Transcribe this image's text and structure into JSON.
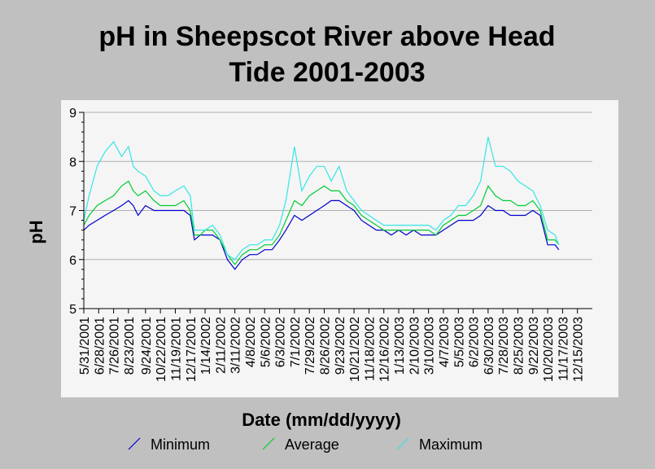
{
  "chart_data": {
    "type": "line",
    "title_lines": [
      "pH in Sheepscot River above Head",
      "Tide 2001-2003"
    ],
    "xlabel": "Date (mm/dd/yyyy)",
    "ylabel": "pH",
    "ylim": [
      5,
      9
    ],
    "yticks": [
      "5",
      "6",
      "7",
      "8",
      "9"
    ],
    "xlim": [
      "2001-05-31",
      "2004-01-12"
    ],
    "xtick_labels": [
      "5/31/2001",
      "6/28/2001",
      "7/26/2001",
      "8/23/2001",
      "9/24/2001",
      "10/22/2001",
      "11/19/2001",
      "12/17/2001",
      "1/14/2002",
      "2/11/2002",
      "3/11/2002",
      "4/8/2002",
      "5/6/2002",
      "6/3/2002",
      "7/1/2002",
      "7/29/2002",
      "8/26/2002",
      "9/23/2002",
      "10/21/2002",
      "11/18/2002",
      "12/16/2002",
      "1/13/2003",
      "2/10/2003",
      "3/10/2003",
      "4/7/2003",
      "5/5/2003",
      "6/2/2003",
      "6/30/2003",
      "7/28/2003",
      "8/25/2003",
      "9/22/2003",
      "10/20/2003",
      "11/17/2003",
      "12/15/2003"
    ],
    "grid": true,
    "legend_position": "bottom",
    "series": [
      {
        "name": "Minimum",
        "color": "#0000cc",
        "x": [
          "2001-05-31",
          "2001-06-10",
          "2001-06-25",
          "2001-07-10",
          "2001-07-26",
          "2001-08-10",
          "2001-08-23",
          "2001-09-01",
          "2001-09-10",
          "2001-09-24",
          "2001-10-10",
          "2001-10-22",
          "2001-11-05",
          "2001-11-19",
          "2001-12-05",
          "2001-12-17",
          "2001-12-25",
          "2002-01-05",
          "2002-01-14",
          "2002-01-28",
          "2002-02-11",
          "2002-02-25",
          "2002-03-11",
          "2002-03-25",
          "2002-04-08",
          "2002-04-22",
          "2002-05-06",
          "2002-05-20",
          "2002-06-03",
          "2002-06-15",
          "2002-07-01",
          "2002-07-15",
          "2002-07-29",
          "2002-08-12",
          "2002-08-26",
          "2002-09-08",
          "2002-09-23",
          "2002-10-07",
          "2002-10-21",
          "2002-11-04",
          "2002-11-18",
          "2002-12-02",
          "2002-12-16",
          "2002-12-30",
          "2003-01-13",
          "2003-01-27",
          "2003-02-10",
          "2003-02-24",
          "2003-03-10",
          "2003-03-24",
          "2003-04-07",
          "2003-04-21",
          "2003-05-05",
          "2003-05-19",
          "2003-06-02",
          "2003-06-16",
          "2003-06-30",
          "2003-07-14",
          "2003-07-28",
          "2003-08-11",
          "2003-08-25",
          "2003-09-08",
          "2003-09-22",
          "2003-10-06",
          "2003-10-20",
          "2003-11-03",
          "2003-11-10"
        ],
        "values": [
          6.6,
          6.7,
          6.8,
          6.9,
          7.0,
          7.1,
          7.2,
          7.1,
          6.9,
          7.1,
          7.0,
          7.0,
          7.0,
          7.0,
          7.0,
          6.9,
          6.4,
          6.5,
          6.5,
          6.5,
          6.4,
          6.0,
          5.8,
          6.0,
          6.1,
          6.1,
          6.2,
          6.2,
          6.4,
          6.6,
          6.9,
          6.8,
          6.9,
          7.0,
          7.1,
          7.2,
          7.2,
          7.1,
          7.0,
          6.8,
          6.7,
          6.6,
          6.6,
          6.5,
          6.6,
          6.5,
          6.6,
          6.5,
          6.5,
          6.5,
          6.6,
          6.7,
          6.8,
          6.8,
          6.8,
          6.9,
          7.1,
          7.0,
          7.0,
          6.9,
          6.9,
          6.9,
          7.0,
          6.9,
          6.3,
          6.3,
          6.2
        ]
      },
      {
        "name": "Average",
        "color": "#00cc33",
        "x": [
          "2001-05-31",
          "2001-06-10",
          "2001-06-25",
          "2001-07-10",
          "2001-07-26",
          "2001-08-10",
          "2001-08-23",
          "2001-09-01",
          "2001-09-10",
          "2001-09-24",
          "2001-10-10",
          "2001-10-22",
          "2001-11-05",
          "2001-11-19",
          "2001-12-05",
          "2001-12-17",
          "2001-12-25",
          "2002-01-05",
          "2002-01-14",
          "2002-01-28",
          "2002-02-11",
          "2002-02-25",
          "2002-03-11",
          "2002-03-25",
          "2002-04-08",
          "2002-04-22",
          "2002-05-06",
          "2002-05-20",
          "2002-06-03",
          "2002-06-15",
          "2002-07-01",
          "2002-07-15",
          "2002-07-29",
          "2002-08-12",
          "2002-08-26",
          "2002-09-08",
          "2002-09-23",
          "2002-10-07",
          "2002-10-21",
          "2002-11-04",
          "2002-11-18",
          "2002-12-02",
          "2002-12-16",
          "2002-12-30",
          "2003-01-13",
          "2003-01-27",
          "2003-02-10",
          "2003-02-24",
          "2003-03-10",
          "2003-03-24",
          "2003-04-07",
          "2003-04-21",
          "2003-05-05",
          "2003-05-19",
          "2003-06-02",
          "2003-06-16",
          "2003-06-30",
          "2003-07-14",
          "2003-07-28",
          "2003-08-11",
          "2003-08-25",
          "2003-09-08",
          "2003-09-22",
          "2003-10-06",
          "2003-10-20",
          "2003-11-03",
          "2003-11-10"
        ],
        "values": [
          6.7,
          6.9,
          7.1,
          7.2,
          7.3,
          7.5,
          7.6,
          7.4,
          7.3,
          7.4,
          7.2,
          7.1,
          7.1,
          7.1,
          7.2,
          7.0,
          6.5,
          6.5,
          6.6,
          6.6,
          6.4,
          6.1,
          5.9,
          6.1,
          6.2,
          6.2,
          6.3,
          6.3,
          6.5,
          6.8,
          7.2,
          7.1,
          7.3,
          7.4,
          7.5,
          7.4,
          7.4,
          7.2,
          7.1,
          6.9,
          6.8,
          6.7,
          6.6,
          6.6,
          6.6,
          6.6,
          6.6,
          6.6,
          6.6,
          6.5,
          6.7,
          6.8,
          6.9,
          6.9,
          7.0,
          7.1,
          7.5,
          7.3,
          7.2,
          7.2,
          7.1,
          7.1,
          7.2,
          7.0,
          6.4,
          6.4,
          6.3
        ]
      },
      {
        "name": "Maximum",
        "color": "#33e6e6",
        "x": [
          "2001-05-31",
          "2001-06-10",
          "2001-06-25",
          "2001-07-10",
          "2001-07-26",
          "2001-08-10",
          "2001-08-23",
          "2001-09-01",
          "2001-09-10",
          "2001-09-24",
          "2001-10-10",
          "2001-10-22",
          "2001-11-05",
          "2001-11-19",
          "2001-12-05",
          "2001-12-17",
          "2001-12-25",
          "2002-01-05",
          "2002-01-14",
          "2002-01-28",
          "2002-02-11",
          "2002-02-25",
          "2002-03-11",
          "2002-03-25",
          "2002-04-08",
          "2002-04-22",
          "2002-05-06",
          "2002-05-20",
          "2002-06-03",
          "2002-06-15",
          "2002-07-01",
          "2002-07-15",
          "2002-07-29",
          "2002-08-12",
          "2002-08-26",
          "2002-09-08",
          "2002-09-23",
          "2002-10-07",
          "2002-10-21",
          "2002-11-04",
          "2002-11-18",
          "2002-12-02",
          "2002-12-16",
          "2002-12-30",
          "2003-01-13",
          "2003-01-27",
          "2003-02-10",
          "2003-02-24",
          "2003-03-10",
          "2003-03-24",
          "2003-04-07",
          "2003-04-21",
          "2003-05-05",
          "2003-05-19",
          "2003-06-02",
          "2003-06-16",
          "2003-06-30",
          "2003-07-14",
          "2003-07-28",
          "2003-08-11",
          "2003-08-25",
          "2003-09-08",
          "2003-09-22",
          "2003-10-06",
          "2003-10-20",
          "2003-11-03",
          "2003-11-10"
        ],
        "values": [
          6.8,
          7.3,
          7.9,
          8.2,
          8.4,
          8.1,
          8.3,
          7.9,
          7.8,
          7.7,
          7.4,
          7.3,
          7.3,
          7.4,
          7.5,
          7.3,
          6.6,
          6.6,
          6.6,
          6.7,
          6.5,
          6.1,
          6.0,
          6.2,
          6.3,
          6.3,
          6.4,
          6.4,
          6.7,
          7.2,
          8.3,
          7.4,
          7.7,
          7.9,
          7.9,
          7.6,
          7.9,
          7.4,
          7.2,
          7.0,
          6.9,
          6.8,
          6.7,
          6.7,
          6.7,
          6.7,
          6.7,
          6.7,
          6.7,
          6.6,
          6.8,
          6.9,
          7.1,
          7.1,
          7.3,
          7.6,
          8.5,
          7.9,
          7.9,
          7.8,
          7.6,
          7.5,
          7.4,
          7.1,
          6.6,
          6.5,
          6.3
        ]
      }
    ]
  }
}
